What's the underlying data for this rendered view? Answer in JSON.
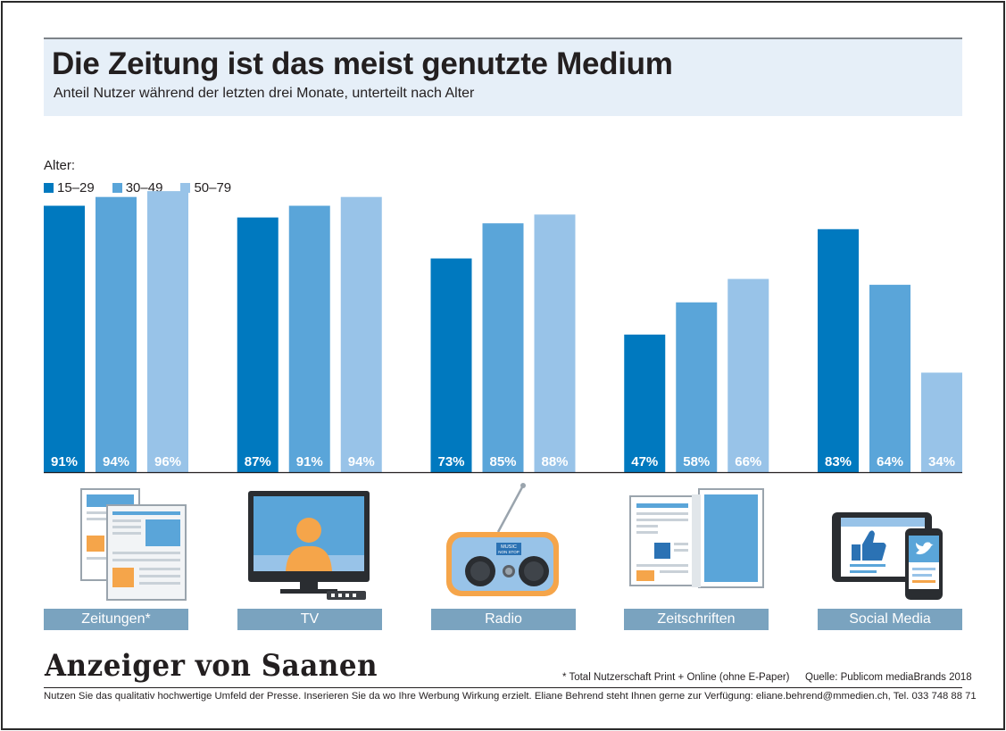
{
  "header": {
    "title": "Die Zeitung ist das meist genutzte Medium",
    "subtitle": "Anteil Nutzer während der letzten drei Monate, unterteilt nach Alter"
  },
  "legend": {
    "title": "Alter:",
    "entries": [
      "15–29",
      "30–49",
      "50–79"
    ]
  },
  "colors": {
    "series_1": "#0079bf",
    "series_2": "#5aa5d9",
    "series_3": "#98c3e8",
    "label_bg": "#7aa3bf",
    "header_bg": "#e6eff8"
  },
  "chart_data": {
    "type": "bar",
    "categories": [
      "Zeitungen*",
      "TV",
      "Radio",
      "Zeitschriften",
      "Social Media"
    ],
    "series": [
      {
        "name": "15–29",
        "values": [
          91,
          87,
          73,
          47,
          83
        ]
      },
      {
        "name": "30–49",
        "values": [
          94,
          91,
          85,
          58,
          64
        ]
      },
      {
        "name": "50–79",
        "values": [
          96,
          94,
          88,
          66,
          34
        ]
      }
    ],
    "value_suffix": "%",
    "ylim": [
      0,
      100
    ],
    "grid": false,
    "legend_position": "top-left"
  },
  "categories": [
    {
      "label": "Zeitungen*",
      "icon": "newspaper-icon"
    },
    {
      "label": "TV",
      "icon": "tv-icon"
    },
    {
      "label": "Radio",
      "icon": "radio-icon"
    },
    {
      "label": "Zeitschriften",
      "icon": "magazine-icon"
    },
    {
      "label": "Social Media",
      "icon": "social-media-icon"
    }
  ],
  "icons": {
    "radio_display_line1": "MUSIC",
    "radio_display_line2": "NON STOP"
  },
  "footer": {
    "logo": "Anzeiger von Saanen",
    "footnote": "* Total Nutzerschaft Print + Online (ohne E-Paper)",
    "source": "Quelle: Publicom mediaBrands 2018",
    "contact": "Nutzen Sie das qualitativ hochwertige Umfeld der Presse. Inserieren Sie da wo Ihre Werbung Wirkung erzielt. Eliane Behrend steht Ihnen gerne zur Verfügung: eliane.behrend@mmedien.ch, Tel. 033 748 88 71"
  }
}
